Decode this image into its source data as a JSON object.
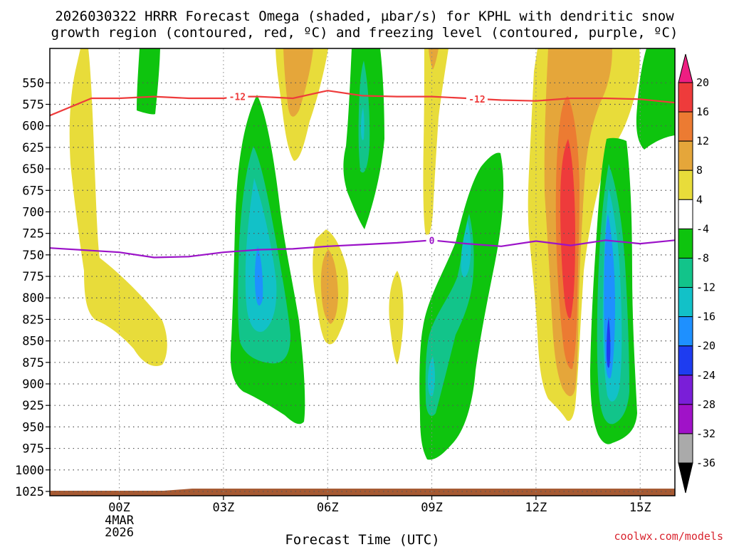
{
  "chart_data": {
    "type": "heatmap",
    "title_lines": [
      "2026030322 HRRR Forecast Omega (shaded, µbar/s) for KPHL with dendritic snow",
      "growth region (contoured, red, ºC) and freezing level (contoured, purple, ºC)"
    ],
    "xlabel": "Forecast Time (UTC)",
    "ylabel": "",
    "credit": "coolwx.com/models",
    "x_range_hours": [
      -2,
      16
    ],
    "y_range_hpa": [
      510,
      1030
    ],
    "x_ticks": [
      {
        "hour": 0,
        "label": "00Z",
        "sub": [
          "4MAR",
          "2026"
        ]
      },
      {
        "hour": 3,
        "label": "03Z"
      },
      {
        "hour": 6,
        "label": "06Z"
      },
      {
        "hour": 9,
        "label": "09Z"
      },
      {
        "hour": 12,
        "label": "12Z"
      },
      {
        "hour": 15,
        "label": "15Z"
      }
    ],
    "y_ticks": [
      550,
      575,
      600,
      625,
      650,
      675,
      700,
      725,
      750,
      775,
      800,
      825,
      850,
      875,
      900,
      925,
      950,
      975,
      1000,
      1025
    ],
    "colorbar": {
      "levels": [
        20,
        16,
        12,
        8,
        4,
        -4,
        -8,
        -12,
        -16,
        -20,
        -24,
        -28,
        -32,
        -36
      ],
      "colors": [
        "#ee3b3b",
        "#ec7b32",
        "#e5a63a",
        "#e8dc3a",
        "#ffffff",
        "#0ec40e",
        "#12c48a",
        "#12c1c8",
        "#1e90ff",
        "#1e3cf0",
        "#7a1ed8",
        "#a012c8",
        "#aaaaaa"
      ],
      "top_arrow_color": "#ee1e82",
      "bottom_arrow_color": "#000000"
    },
    "series": [
      {
        "name": "dendritic snow growth region (-12 ºC)",
        "color": "#ee3b3b",
        "label": "-12",
        "x": [
          -2,
          -0.8,
          0,
          1,
          2,
          3,
          3.4,
          4,
          5,
          6,
          7,
          8,
          9,
          10,
          11,
          12,
          13,
          14,
          15,
          16
        ],
        "y": [
          588,
          568,
          568,
          566,
          568,
          568,
          566,
          566,
          568,
          559,
          565,
          566,
          566,
          568,
          570,
          571,
          568,
          568,
          569,
          573
        ]
      },
      {
        "name": "freezing level (0 ºC)",
        "color": "#9b12c8",
        "label": "0",
        "x": [
          -2,
          0,
          1,
          2,
          3,
          4,
          5,
          6,
          7,
          8,
          9,
          10,
          11,
          12,
          13,
          14,
          15,
          16
        ],
        "y": [
          742,
          747,
          753,
          752,
          747,
          744,
          743,
          740,
          738,
          736,
          733,
          737,
          740,
          734,
          739,
          733,
          737,
          733
        ]
      }
    ],
    "shaded_regions": [
      {
        "x": 3.8,
        "y": 760,
        "value": -16
      },
      {
        "x": 7.1,
        "y": 645,
        "value": -12
      },
      {
        "x": 5.0,
        "y": 570,
        "value": 8
      },
      {
        "x": 6.0,
        "y": 765,
        "value": 8
      },
      {
        "x": 9.2,
        "y": 850,
        "value": -12
      },
      {
        "x": 13.0,
        "y": 695,
        "value": 20
      },
      {
        "x": 14.0,
        "y": 760,
        "value": -16
      }
    ]
  }
}
